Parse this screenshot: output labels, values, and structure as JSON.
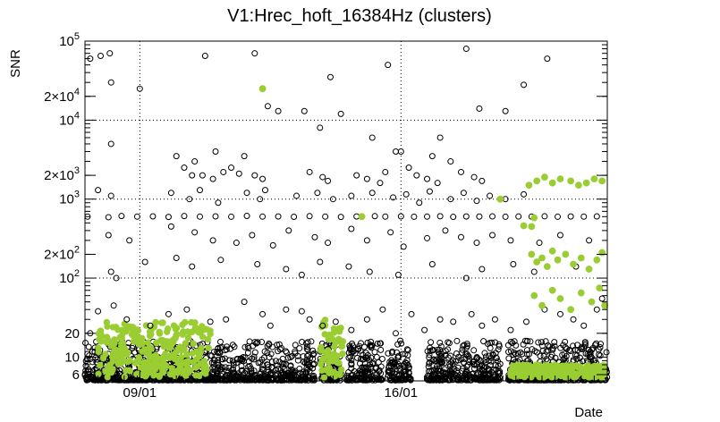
{
  "chart_data": {
    "type": "scatter",
    "title": "V1:Hrec_hoft_16384Hz (clusters)",
    "xlabel": "Date",
    "ylabel": "SNR",
    "yscale": "log",
    "ylim": [
      5,
      100000
    ],
    "xlim_days": [
      0,
      20
    ],
    "grid": true,
    "x_ticks": [
      {
        "label": "09/01",
        "day": 2.1
      },
      {
        "label": "16/01",
        "day": 12.1
      }
    ],
    "y_ticks": [
      {
        "value": 6,
        "label": "6"
      },
      {
        "value": 10,
        "label": "10"
      },
      {
        "value": 20,
        "label": "20"
      },
      {
        "value": 100,
        "base": "10",
        "exp": "2"
      },
      {
        "value": 200,
        "base": "2×10",
        "exp": "2"
      },
      {
        "value": 1000,
        "base": "10",
        "exp": "3"
      },
      {
        "value": 2000,
        "base": "2×10",
        "exp": "3"
      },
      {
        "value": 10000,
        "base": "10",
        "exp": "4"
      },
      {
        "value": 20000,
        "base": "2×10",
        "exp": "4"
      },
      {
        "value": 100000,
        "base": "10",
        "exp": "5"
      }
    ],
    "series": [
      {
        "marker": "open-circle",
        "color": "#000000",
        "points": [
          [
            0.2,
            60000
          ],
          [
            0.6,
            65000
          ],
          [
            0.95,
            70000
          ],
          [
            1.0,
            30000
          ],
          [
            2.1,
            25000
          ],
          [
            4.6,
            65000
          ],
          [
            6.5,
            70000
          ],
          [
            7.0,
            15000
          ],
          [
            7.4,
            13000
          ],
          [
            8.4,
            13000
          ],
          [
            9.0,
            8000
          ],
          [
            9.4,
            35000
          ],
          [
            9.8,
            12000
          ],
          [
            11.0,
            6000
          ],
          [
            11.6,
            50000
          ],
          [
            13.6,
            6000
          ],
          [
            14.6,
            80000
          ],
          [
            15.1,
            14000
          ],
          [
            16.1,
            13000
          ],
          [
            16.8,
            28000
          ],
          [
            17.7,
            60000
          ],
          [
            1.0,
            5000
          ],
          [
            3.5,
            3500
          ],
          [
            4.2,
            3000
          ],
          [
            5.0,
            4000
          ],
          [
            6.1,
            3500
          ],
          [
            11.9,
            4000
          ],
          [
            12.1,
            4000
          ],
          [
            13.3,
            3500
          ],
          [
            14.0,
            3000
          ],
          [
            3.8,
            2500
          ],
          [
            4.1,
            2000
          ],
          [
            4.5,
            2000
          ],
          [
            4.9,
            1800
          ],
          [
            5.3,
            2200
          ],
          [
            5.6,
            2500
          ],
          [
            5.9,
            2100
          ],
          [
            6.5,
            2000
          ],
          [
            6.8,
            1800
          ],
          [
            8.6,
            2200
          ],
          [
            9.1,
            1900
          ],
          [
            9.3,
            1700
          ],
          [
            10.4,
            2000
          ],
          [
            10.8,
            1800
          ],
          [
            11.3,
            1600
          ],
          [
            11.5,
            2200
          ],
          [
            12.4,
            2500
          ],
          [
            12.7,
            2000
          ],
          [
            13.1,
            1800
          ],
          [
            13.5,
            1600
          ],
          [
            14.4,
            2200
          ],
          [
            14.9,
            1900
          ],
          [
            15.2,
            1700
          ],
          [
            0.5,
            1300
          ],
          [
            1.0,
            1100
          ],
          [
            3.3,
            1200
          ],
          [
            4.0,
            1000
          ],
          [
            4.4,
            1300
          ],
          [
            5.1,
            900
          ],
          [
            6.2,
            1200
          ],
          [
            6.7,
            1000
          ],
          [
            6.9,
            1300
          ],
          [
            8.1,
            1100
          ],
          [
            8.9,
            1200
          ],
          [
            9.5,
            1000
          ],
          [
            10.2,
            1100
          ],
          [
            11.0,
            1200
          ],
          [
            11.8,
            1050
          ],
          [
            12.3,
            1150
          ],
          [
            12.8,
            900
          ],
          [
            13.2,
            1250
          ],
          [
            14.0,
            1000
          ],
          [
            14.5,
            1200
          ],
          [
            15.0,
            950
          ],
          [
            15.5,
            1100
          ],
          [
            16.1,
            1000
          ],
          [
            16.8,
            1150
          ],
          [
            0.1,
            600
          ],
          [
            0.9,
            590
          ],
          [
            1.4,
            610
          ],
          [
            2.0,
            600
          ],
          [
            2.6,
            605
          ],
          [
            3.2,
            595
          ],
          [
            3.8,
            610
          ],
          [
            4.4,
            600
          ],
          [
            5.0,
            605
          ],
          [
            5.6,
            598
          ],
          [
            6.2,
            612
          ],
          [
            6.8,
            600
          ],
          [
            7.4,
            603
          ],
          [
            8.0,
            597
          ],
          [
            8.6,
            608
          ],
          [
            9.2,
            600
          ],
          [
            9.8,
            595
          ],
          [
            10.4,
            603
          ],
          [
            11.1,
            608
          ],
          [
            11.5,
            600
          ],
          [
            12.1,
            605
          ],
          [
            12.6,
            598
          ],
          [
            13.1,
            600
          ],
          [
            13.6,
            607
          ],
          [
            14.1,
            596
          ],
          [
            14.6,
            603
          ],
          [
            15.1,
            601
          ],
          [
            15.6,
            604
          ],
          [
            16.1,
            598
          ],
          [
            16.6,
            602
          ],
          [
            17.1,
            600
          ],
          [
            17.6,
            606
          ],
          [
            18.1,
            598
          ],
          [
            18.6,
            603
          ],
          [
            19.1,
            600
          ],
          [
            19.6,
            604
          ],
          [
            0.9,
            350
          ],
          [
            1.7,
            300
          ],
          [
            3.3,
            450
          ],
          [
            4.2,
            380
          ],
          [
            4.9,
            300
          ],
          [
            5.8,
            280
          ],
          [
            6.4,
            350
          ],
          [
            7.2,
            260
          ],
          [
            7.8,
            400
          ],
          [
            8.8,
            330
          ],
          [
            9.3,
            280
          ],
          [
            10.2,
            420
          ],
          [
            10.8,
            300
          ],
          [
            11.7,
            380
          ],
          [
            12.2,
            250
          ],
          [
            13.1,
            320
          ],
          [
            13.8,
            400
          ],
          [
            14.4,
            330
          ],
          [
            15.0,
            280
          ],
          [
            15.6,
            350
          ],
          [
            16.3,
            300
          ],
          [
            17.4,
            280
          ],
          [
            18.2,
            350
          ],
          [
            19.3,
            300
          ],
          [
            1.0,
            120
          ],
          [
            1.2,
            100
          ],
          [
            2.3,
            160
          ],
          [
            3.5,
            180
          ],
          [
            4.1,
            140
          ],
          [
            5.2,
            170
          ],
          [
            6.6,
            150
          ],
          [
            7.7,
            130
          ],
          [
            8.3,
            110
          ],
          [
            9.0,
            160
          ],
          [
            10.1,
            140
          ],
          [
            10.9,
            120
          ],
          [
            12.0,
            110
          ],
          [
            13.3,
            150
          ],
          [
            14.6,
            100
          ],
          [
            15.2,
            130
          ],
          [
            16.4,
            150
          ],
          [
            17.2,
            120
          ],
          [
            18.8,
            140
          ],
          [
            0.2,
            20
          ],
          [
            0.5,
            38
          ],
          [
            1.1,
            45
          ],
          [
            1.6,
            30
          ],
          [
            2.5,
            25
          ],
          [
            3.2,
            35
          ],
          [
            3.9,
            40
          ],
          [
            4.8,
            28
          ],
          [
            5.4,
            30
          ],
          [
            6.1,
            50
          ],
          [
            6.8,
            35
          ],
          [
            7.1,
            25
          ],
          [
            7.7,
            40
          ],
          [
            8.3,
            38
          ],
          [
            8.6,
            30
          ],
          [
            9.1,
            25
          ],
          [
            9.6,
            28
          ],
          [
            10.2,
            22
          ],
          [
            10.8,
            30
          ],
          [
            11.4,
            40
          ],
          [
            11.9,
            20
          ],
          [
            12.5,
            35
          ],
          [
            13.0,
            22
          ],
          [
            13.6,
            30
          ],
          [
            14.1,
            28
          ],
          [
            14.8,
            35
          ],
          [
            15.2,
            25
          ],
          [
            15.7,
            30
          ],
          [
            16.3,
            22
          ],
          [
            16.9,
            28
          ],
          [
            17.6,
            40
          ],
          [
            18.2,
            35
          ],
          [
            18.7,
            30
          ],
          [
            19.1,
            25
          ],
          [
            19.6,
            40
          ],
          [
            19.8,
            55
          ]
        ]
      },
      {
        "marker": "filled-circle",
        "color": "#9acd32",
        "points": [
          [
            6.8,
            25000
          ],
          [
            10.6,
            600
          ],
          [
            15.9,
            1000
          ],
          [
            17.2,
            580
          ],
          [
            16.8,
            460
          ],
          [
            17.1,
            450
          ],
          [
            17.0,
            1500
          ],
          [
            17.3,
            1700
          ],
          [
            17.6,
            1900
          ],
          [
            17.9,
            1600
          ],
          [
            18.2,
            1800
          ],
          [
            18.6,
            1700
          ],
          [
            18.9,
            1500
          ],
          [
            19.2,
            1600
          ],
          [
            19.5,
            1800
          ],
          [
            19.8,
            1700
          ],
          [
            17.1,
            200
          ],
          [
            17.3,
            160
          ],
          [
            17.5,
            180
          ],
          [
            17.7,
            140
          ],
          [
            17.9,
            220
          ],
          [
            18.1,
            170
          ],
          [
            18.4,
            200
          ],
          [
            18.7,
            150
          ],
          [
            19.0,
            180
          ],
          [
            19.3,
            130
          ],
          [
            19.6,
            170
          ],
          [
            19.8,
            210
          ],
          [
            17.2,
            60
          ],
          [
            17.5,
            45
          ],
          [
            17.9,
            70
          ],
          [
            18.2,
            55
          ],
          [
            18.6,
            40
          ],
          [
            19.0,
            65
          ],
          [
            19.4,
            50
          ],
          [
            19.7,
            75
          ],
          [
            19.9,
            45
          ]
        ]
      }
    ]
  }
}
